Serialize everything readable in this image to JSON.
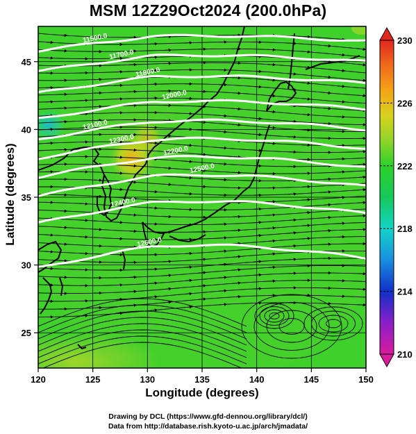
{
  "title": "MSM 12Z29Oct2024 (200.0hPa)",
  "axes": {
    "xlabel": "Longitude (degrees)",
    "ylabel": "Latitude  (degrees)",
    "x_ticks": [
      "120",
      "125",
      "130",
      "135",
      "140",
      "145",
      "150"
    ],
    "y_ticks": [
      "25",
      "30",
      "35",
      "40",
      "45"
    ],
    "xlim": [
      120,
      150
    ],
    "ylim": [
      22.4,
      47.6
    ]
  },
  "colorbar": {
    "ticks": [
      "210",
      "214",
      "218",
      "222",
      "226",
      "230"
    ],
    "range": [
      210,
      230
    ],
    "colors": [
      "#d81b9c",
      "#8a1fc8",
      "#1030c8",
      "#1a8ee0",
      "#13d4c8",
      "#16c85a",
      "#2ed12a",
      "#8fd42a",
      "#d8d21e",
      "#f4a418",
      "#f06a1c",
      "#e0281e"
    ]
  },
  "contour_labels": [
    "11500.0",
    "11700.0",
    "11800.0",
    "12000.0",
    "12100.0",
    "12300.0",
    "12200.0",
    "12500.0",
    "12400.0",
    "12600.0"
  ],
  "credits": {
    "line1": "Drawing by DCL (https://www.gfd-dennou.org/library/dcl/)",
    "line2": "Data from http://database.rish.kyoto-u.ac.jp/arch/jmadata/"
  },
  "chart_data": {
    "type": "heatmap",
    "title": "MSM 12Z29Oct2024 (200.0hPa)",
    "xlabel": "Longitude (degrees)",
    "ylabel": "Latitude  (degrees)",
    "xlim": [
      120,
      150
    ],
    "ylim": [
      22.4,
      47.6
    ],
    "field_range": [
      210,
      230
    ],
    "hotspot": {
      "lon": 128,
      "lat": 38.5,
      "value": 226
    },
    "contours": [
      {
        "label": "11500.0",
        "lat": 46.5
      },
      {
        "label": "11700.0",
        "lat": 45.0
      },
      {
        "label": "11800.0",
        "lat": 43.4
      },
      {
        "label": "12000.0",
        "lat": 41.5
      },
      {
        "label": "12100.0",
        "lat": 40.0
      },
      {
        "label": "12300.0",
        "lat": 38.6
      },
      {
        "label": "12200.0",
        "lat": 37.2
      },
      {
        "label": "12500.0",
        "lat": 35.8
      },
      {
        "label": "12400.0",
        "lat": 33.8
      },
      {
        "label": "12600.0",
        "lat": 30.5
      }
    ]
  }
}
